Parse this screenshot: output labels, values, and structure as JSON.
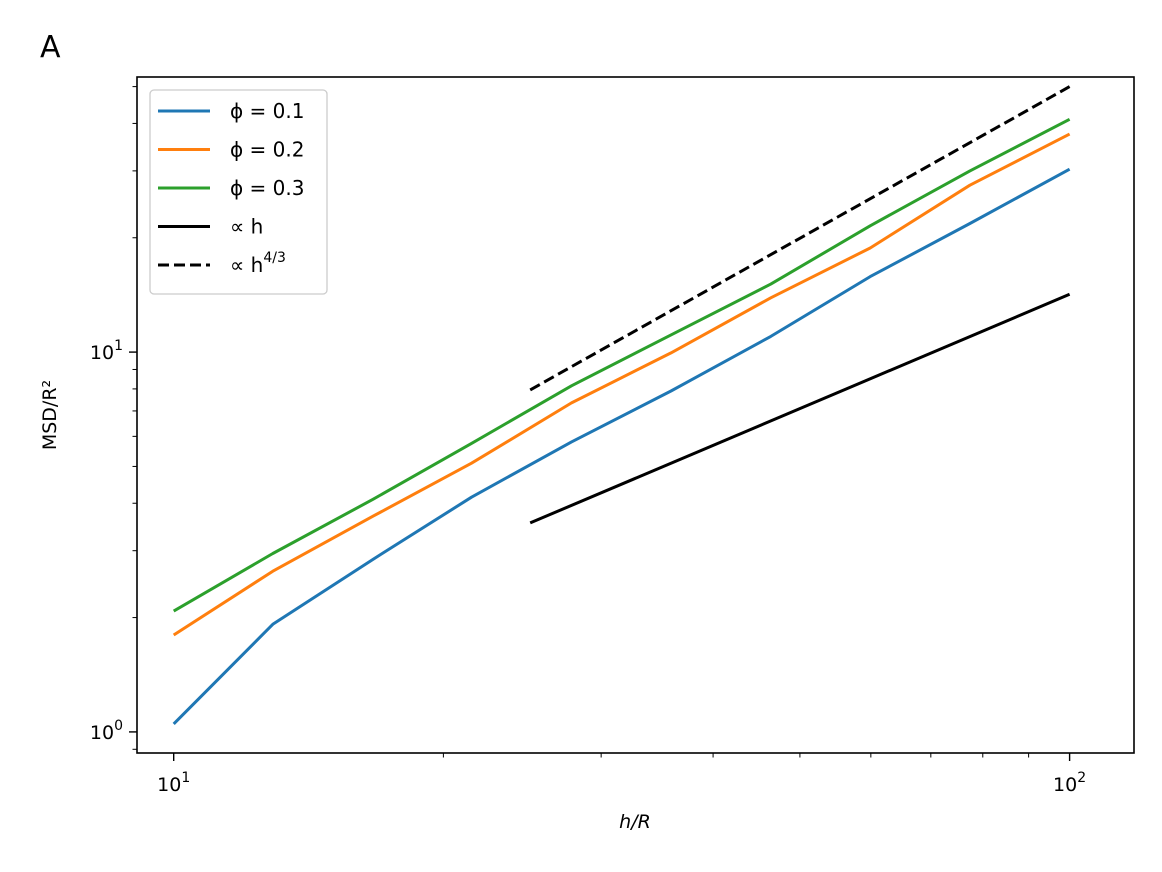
{
  "panel_label": "A",
  "chart_data": {
    "type": "line",
    "title": "",
    "xlabel": "h/R",
    "ylabel": "MSD/R²",
    "xscale": "log",
    "yscale": "log",
    "xlim": [
      9.1,
      118
    ],
    "ylim": [
      0.88,
      53
    ],
    "x_ticks": [
      {
        "value": 10,
        "base": "10",
        "exp": "1"
      },
      {
        "value": 100,
        "base": "10",
        "exp": "2"
      }
    ],
    "y_ticks": [
      {
        "value": 1,
        "base": "10",
        "exp": "0"
      },
      {
        "value": 10,
        "base": "10",
        "exp": "1"
      }
    ],
    "grid": false,
    "legend_position": "upper-left",
    "series": [
      {
        "name": "ϕ = 0.1",
        "color": "#1f77b4",
        "style": "solid",
        "x": [
          10,
          12.9,
          16.7,
          21.5,
          27.8,
          35.9,
          46.4,
          59.9,
          77.4,
          100
        ],
        "y": [
          1.05,
          1.92,
          2.85,
          4.15,
          5.8,
          7.9,
          11.0,
          15.8,
          21.8,
          30.3
        ]
      },
      {
        "name": "ϕ = 0.2",
        "color": "#ff7f0e",
        "style": "solid",
        "x": [
          10,
          12.9,
          16.7,
          21.5,
          27.8,
          35.9,
          46.4,
          59.9,
          77.4,
          100
        ],
        "y": [
          1.8,
          2.65,
          3.7,
          5.1,
          7.35,
          9.95,
          13.9,
          18.8,
          27.5,
          37.5
        ]
      },
      {
        "name": "ϕ = 0.3",
        "color": "#2ca02c",
        "style": "solid",
        "x": [
          10,
          12.9,
          16.7,
          21.5,
          27.8,
          35.9,
          46.4,
          59.9,
          77.4,
          100
        ],
        "y": [
          2.08,
          2.95,
          4.1,
          5.75,
          8.15,
          11.1,
          15.1,
          21.5,
          30.0,
          41.0
        ]
      },
      {
        "name": "∝ h",
        "color": "#000000",
        "style": "solid",
        "x": [
          25,
          100
        ],
        "y": [
          3.55,
          14.2
        ]
      },
      {
        "name": "∝ h^{4/3}",
        "color": "#000000",
        "style": "dashed",
        "x": [
          25,
          100
        ],
        "y": [
          7.95,
          50.0
        ]
      }
    ],
    "legend": [
      {
        "prefix": "ϕ = 0.1",
        "sup": ""
      },
      {
        "prefix": "ϕ = 0.2",
        "sup": ""
      },
      {
        "prefix": "ϕ = 0.3",
        "sup": ""
      },
      {
        "prefix": "∝ h",
        "sup": ""
      },
      {
        "prefix": "∝ h",
        "sup": "4/3"
      }
    ]
  }
}
